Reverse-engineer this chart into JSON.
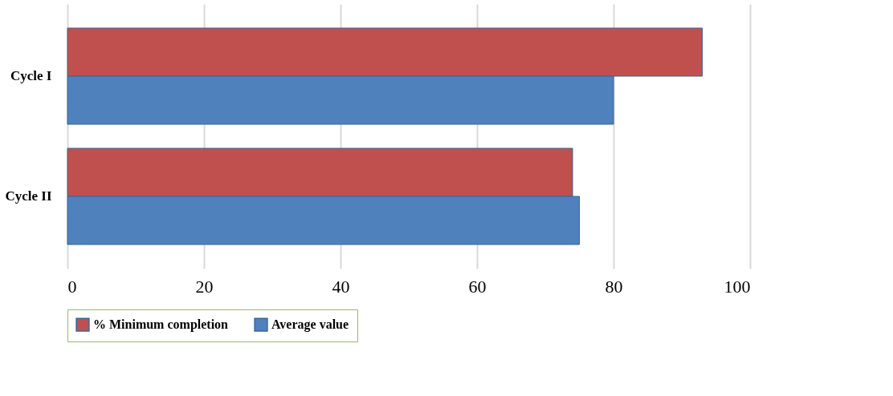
{
  "chart_data": {
    "type": "bar",
    "orientation": "horizontal",
    "categories": [
      "Cycle I",
      "Cycle II"
    ],
    "series": [
      {
        "name": "% Minimum completion",
        "color": "#c0504d",
        "values": [
          93,
          74
        ]
      },
      {
        "name": "Average value",
        "color": "#4f81bd",
        "values": [
          80,
          75
        ]
      }
    ],
    "xlim": [
      0,
      100
    ],
    "xticks": [
      0,
      20,
      40,
      60,
      80,
      100
    ],
    "grid": "x",
    "legend": "bottom"
  }
}
